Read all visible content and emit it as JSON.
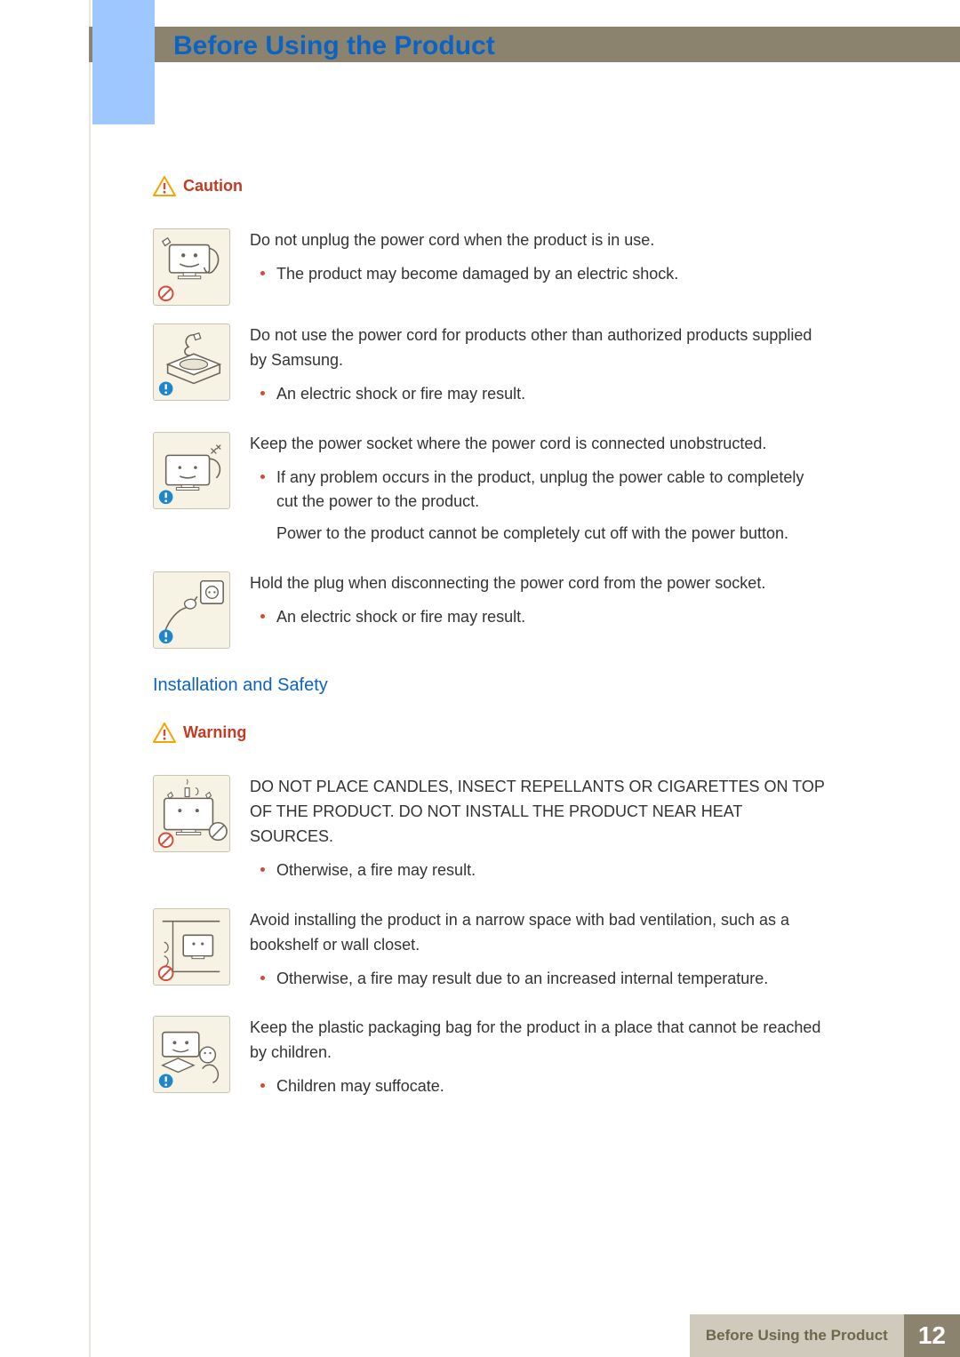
{
  "colors": {
    "title": "#0b63c4",
    "banner_bg": "#8b836e",
    "tab_bg": "#9ec7ff",
    "caution_label": "#c23b22",
    "warning_label": "#c23b22",
    "section_title": "#0b63c4",
    "bullet": "#d24a3a",
    "thumb_bg": "#f6f3e4",
    "footer_label_bg": "#cfcabb",
    "footer_label_text": "#6f664c",
    "footer_page_bg": "#8b836e",
    "footer_page_text": "#ffffff",
    "prohibit": "#d64b3a",
    "info": "#1f87c9"
  },
  "header": {
    "title": "Before Using the Product"
  },
  "caution": {
    "label": "Caution",
    "items": [
      {
        "badge": "prohibit",
        "lead": "Do not unplug the power cord when the product is in use.",
        "bullets": [
          "The product may become damaged by an electric shock."
        ]
      },
      {
        "badge": "info",
        "lead": "Do not use the power cord for products other than authorized products supplied by Samsung.",
        "bullets": [
          "An electric shock or fire may result."
        ]
      },
      {
        "badge": "info",
        "lead": "Keep the power socket where the power cord is connected unobstructed.",
        "bullets": [
          "If any problem occurs in the product, unplug the power cable to completely cut the power to the product.",
          "Power to the product cannot be completely cut off with the power button."
        ],
        "bullet_types": [
          "normal",
          "sub"
        ]
      },
      {
        "badge": "info",
        "lead": "Hold the plug when disconnecting the power cord from the power socket.",
        "bullets": [
          "An electric shock or fire may result."
        ]
      }
    ]
  },
  "section2": {
    "title": "Installation and Safety"
  },
  "warning": {
    "label": "Warning",
    "items": [
      {
        "badge": "prohibit",
        "lead": "DO NOT PLACE CANDLES, INSECT REPELLANTS OR CIGARETTES ON TOP OF THE PRODUCT. DO NOT INSTALL THE PRODUCT NEAR HEAT SOURCES.",
        "bullets": [
          "Otherwise, a fire may result."
        ]
      },
      {
        "badge": "prohibit",
        "lead": "Avoid installing the product in a narrow space with bad ventilation, such as a bookshelf or wall closet.",
        "bullets": [
          "Otherwise, a fire may result due to an increased internal temperature."
        ]
      },
      {
        "badge": "info",
        "lead": "Keep the plastic packaging bag for the product in a place that cannot be reached by children.",
        "bullets": [
          "Children may suffocate."
        ]
      }
    ]
  },
  "footer": {
    "label": "Before Using the Product",
    "page": "12"
  }
}
